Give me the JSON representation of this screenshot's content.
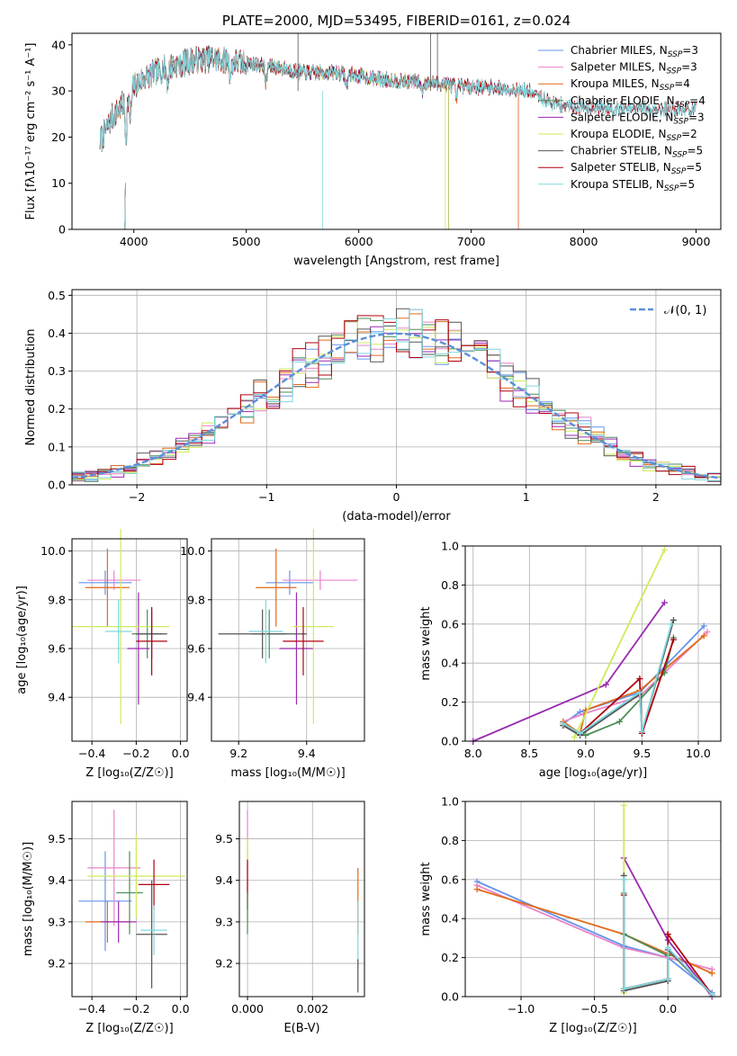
{
  "colors": {
    "chabrier_miles": "#6495ED",
    "salpeter_miles": "#E884C9",
    "kroupa_miles": "#E36A1A",
    "chabrier_elodie": "#4E8B57",
    "salpeter_elodie": "#9A2AB0",
    "kroupa_elodie": "#CDEB5A",
    "chabrier_stelib": "#555555",
    "salpeter_stelib": "#B00010",
    "kroupa_stelib": "#7FD8DF"
  },
  "chart_data": [
    {
      "id": "spectrum",
      "type": "line",
      "title": "PLATE=2000, MJD=53495, FIBERID=0161, z=0.024",
      "xlabel": "wavelength [Angstrom, rest frame]",
      "ylabel": "Flux [fλ10⁻¹⁷ erg cm⁻² s⁻¹ A⁻¹]",
      "xlim": [
        3450,
        9220
      ],
      "ylim": [
        0,
        42.5
      ],
      "xticks": [
        4000,
        5000,
        6000,
        7000,
        8000,
        9000
      ],
      "yticks": [
        0,
        10,
        20,
        30,
        40
      ],
      "grid": false,
      "legend_position": "top-right",
      "legend": [
        {
          "main": "Chabrier MILES, N",
          "sub": "SSP",
          "tail": "=3",
          "color_key": "chabrier_miles"
        },
        {
          "main": "Salpeter MILES, N",
          "sub": "SSP",
          "tail": "=3",
          "color_key": "salpeter_miles"
        },
        {
          "main": "Kroupa MILES, N",
          "sub": "SSP",
          "tail": "=4",
          "color_key": "kroupa_miles"
        },
        {
          "main": "Chabrier ELODIE, N",
          "sub": "SSP",
          "tail": "=4",
          "color_key": "chabrier_elodie"
        },
        {
          "main": "Salpeter ELODIE, N",
          "sub": "SSP",
          "tail": "=3",
          "color_key": "salpeter_elodie"
        },
        {
          "main": "Kroupa ELODIE, N",
          "sub": "SSP",
          "tail": "=2",
          "color_key": "kroupa_elodie"
        },
        {
          "main": "Chabrier STELIB, N",
          "sub": "SSP",
          "tail": "=5",
          "color_key": "chabrier_stelib"
        },
        {
          "main": "Salpeter STELIB, N",
          "sub": "SSP",
          "tail": "=5",
          "color_key": "salpeter_stelib"
        },
        {
          "main": "Kroupa STELIB, N",
          "sub": "SSP",
          "tail": "=5",
          "color_key": "kroupa_stelib"
        }
      ],
      "continuum": [
        [
          3700,
          19
        ],
        [
          3800,
          24
        ],
        [
          3900,
          27
        ],
        [
          4000,
          31
        ],
        [
          4100,
          33
        ],
        [
          4300,
          35
        ],
        [
          4500,
          36.5
        ],
        [
          4700,
          37
        ],
        [
          5000,
          36
        ],
        [
          5200,
          35.5
        ],
        [
          5500,
          34
        ],
        [
          5800,
          34
        ],
        [
          6200,
          32.5
        ],
        [
          6500,
          32
        ],
        [
          7000,
          31
        ],
        [
          7300,
          30.5
        ],
        [
          7500,
          30
        ],
        [
          7600,
          29
        ],
        [
          7700,
          27.5
        ],
        [
          7800,
          27
        ],
        [
          8000,
          26.5
        ],
        [
          8500,
          26
        ],
        [
          9000,
          26
        ]
      ],
      "features": [
        [
          3930,
          -8
        ],
        [
          3970,
          -6
        ],
        [
          4300,
          -3
        ],
        [
          4860,
          -3
        ],
        [
          5175,
          -4
        ],
        [
          5890,
          -3
        ],
        [
          6563,
          -2
        ],
        [
          6870,
          -3
        ]
      ],
      "series_ranges": [
        {
          "key": "chabrier_miles",
          "range": [
            3700,
            7420
          ]
        },
        {
          "key": "salpeter_miles",
          "range": [
            3700,
            7420
          ]
        },
        {
          "key": "kroupa_miles",
          "range": [
            3700,
            7420
          ]
        },
        {
          "key": "chabrier_elodie",
          "range": [
            3700,
            6800
          ]
        },
        {
          "key": "salpeter_elodie",
          "range": [
            3700,
            6800
          ]
        },
        {
          "key": "kroupa_elodie",
          "range": [
            3700,
            6800
          ]
        },
        {
          "key": "chabrier_stelib",
          "range": [
            3700,
            9000
          ]
        },
        {
          "key": "salpeter_stelib",
          "range": [
            3700,
            9000
          ]
        },
        {
          "key": "kroupa_stelib",
          "range": [
            3700,
            9000
          ]
        }
      ]
    },
    {
      "id": "residuals",
      "type": "step",
      "xlabel": "(data-model)/error",
      "ylabel": "Normed distribution",
      "xlim": [
        -2.5,
        2.5
      ],
      "ylim": [
        0,
        0.515
      ],
      "xticks": [
        -2,
        -1,
        0,
        1,
        2
      ],
      "xtick_labels": [
        "−2",
        "−1",
        "0",
        "1",
        "2"
      ],
      "yticks": [
        0.0,
        0.1,
        0.2,
        0.3,
        0.4,
        0.5
      ],
      "ytick_labels": [
        "0.0",
        "0.1",
        "0.2",
        "0.3",
        "0.4",
        "0.5"
      ],
      "grid": true,
      "legend_position": "top-right",
      "gaussian_label": "𝒩(0, 1)",
      "gaussian_color": "#5B8FD8",
      "bin_width": 0.1
    },
    {
      "id": "age_vs_Z",
      "type": "errorbar",
      "xlabel": "Z [log₁₀(Z/Z☉)]",
      "ylabel": "age  [log₁₀(age/yr)]",
      "xlim": [
        -0.49,
        0.03
      ],
      "ylim": [
        9.22,
        10.05
      ],
      "xticks": [
        -0.4,
        -0.2,
        0.0
      ],
      "xtick_labels": [
        "−0.4",
        "−0.2",
        "0.0"
      ],
      "yticks": [
        9.4,
        9.6,
        9.8,
        10.0
      ],
      "ytick_labels": [
        "9.4",
        "9.6",
        "9.8",
        "10.0"
      ],
      "grid": true,
      "points": [
        {
          "key": "chabrier_miles",
          "x": -0.34,
          "xerr": 0.12,
          "y": 9.87,
          "yerr": 0.05
        },
        {
          "key": "salpeter_miles",
          "x": -0.3,
          "xerr": 0.12,
          "y": 9.88,
          "yerr": 0.04
        },
        {
          "key": "kroupa_miles",
          "x": -0.33,
          "xerr": 0.1,
          "y": 9.85,
          "yerr": 0.16
        },
        {
          "key": "chabrier_elodie",
          "x": -0.15,
          "xerr": 0.07,
          "y": 9.66,
          "yerr": 0.1
        },
        {
          "key": "salpeter_elodie",
          "x": -0.19,
          "xerr": 0.05,
          "y": 9.6,
          "yerr": 0.23
        },
        {
          "key": "kroupa_elodie",
          "x": -0.27,
          "xerr": 0.22,
          "y": 9.69,
          "yerr": 0.4
        },
        {
          "key": "chabrier_stelib",
          "x": -0.13,
          "xerr": 0.07,
          "y": 9.66,
          "yerr": 0.1
        },
        {
          "key": "salpeter_stelib",
          "x": -0.13,
          "xerr": 0.07,
          "y": 9.63,
          "yerr": 0.14
        },
        {
          "key": "kroupa_stelib",
          "x": -0.28,
          "xerr": 0.06,
          "y": 9.67,
          "yerr": 0.13
        }
      ]
    },
    {
      "id": "age_vs_mass",
      "type": "errorbar",
      "xlabel": "mass [log₁₀(M/M☉)]",
      "xlim": [
        9.12,
        9.57
      ],
      "ylim": [
        9.22,
        10.05
      ],
      "xticks": [
        9.2,
        9.4
      ],
      "xtick_labels": [
        "9.2",
        "9.4"
      ],
      "yticks": [
        9.4,
        9.6,
        9.8,
        10.0
      ],
      "ytick_labels": [
        "9.4",
        "9.6",
        "9.8",
        "10.0"
      ],
      "grid": true,
      "points": [
        {
          "key": "chabrier_miles",
          "x": 9.35,
          "xerr": 0.07,
          "y": 9.87,
          "yerr": 0.05
        },
        {
          "key": "salpeter_miles",
          "x": 9.44,
          "xerr": 0.11,
          "y": 9.88,
          "yerr": 0.04
        },
        {
          "key": "kroupa_miles",
          "x": 9.31,
          "xerr": 0.06,
          "y": 9.85,
          "yerr": 0.16
        },
        {
          "key": "chabrier_elodie",
          "x": 9.29,
          "xerr": 0.05,
          "y": 9.66,
          "yerr": 0.1
        },
        {
          "key": "salpeter_elodie",
          "x": 9.37,
          "xerr": 0.05,
          "y": 9.6,
          "yerr": 0.23
        },
        {
          "key": "kroupa_elodie",
          "x": 9.42,
          "xerr": 0.06,
          "y": 9.69,
          "yerr": 0.4
        },
        {
          "key": "chabrier_stelib",
          "x": 9.27,
          "xerr": 0.13,
          "y": 9.66,
          "yerr": 0.1
        },
        {
          "key": "salpeter_stelib",
          "x": 9.39,
          "xerr": 0.06,
          "y": 9.63,
          "yerr": 0.14
        },
        {
          "key": "kroupa_stelib",
          "x": 9.28,
          "xerr": 0.05,
          "y": 9.67,
          "yerr": 0.13
        }
      ]
    },
    {
      "id": "massweight_vs_age",
      "type": "line",
      "xlabel": "age  [log₁₀(age/yr)]",
      "ylabel": "mass weight",
      "xlim": [
        7.93,
        10.2
      ],
      "ylim": [
        0,
        1.0
      ],
      "xticks": [
        8.0,
        8.5,
        9.0,
        9.5,
        10.0
      ],
      "xtick_labels": [
        "8.0",
        "8.5",
        "9.0",
        "9.5",
        "10.0"
      ],
      "yticks": [
        0.0,
        0.2,
        0.4,
        0.6,
        0.8,
        1.0
      ],
      "ytick_labels": [
        "0.0",
        "0.2",
        "0.4",
        "0.6",
        "0.8",
        "1.0"
      ],
      "grid": true,
      "series": [
        {
          "key": "chabrier_miles",
          "x": [
            8.8,
            8.95,
            9.48,
            10.05
          ],
          "y": [
            0.09,
            0.15,
            0.25,
            0.59
          ]
        },
        {
          "key": "salpeter_miles",
          "x": [
            8.8,
            8.98,
            9.48,
            10.08
          ],
          "y": [
            0.1,
            0.14,
            0.23,
            0.56
          ]
        },
        {
          "key": "kroupa_miles",
          "x": [
            8.8,
            8.95,
            9.0,
            9.48,
            10.05
          ],
          "y": [
            0.1,
            0.04,
            0.16,
            0.26,
            0.54
          ]
        },
        {
          "key": "chabrier_elodie",
          "x": [
            8.8,
            9.0,
            9.3,
            9.7,
            9.78
          ],
          "y": [
            0.08,
            0.03,
            0.1,
            0.35,
            0.53
          ]
        },
        {
          "key": "salpeter_elodie",
          "x": [
            8.0,
            9.18,
            9.7
          ],
          "y": [
            0.0,
            0.29,
            0.71
          ]
        },
        {
          "key": "kroupa_elodie",
          "x": [
            8.9,
            9.7
          ],
          "y": [
            0.02,
            0.98
          ]
        },
        {
          "key": "chabrier_stelib",
          "x": [
            8.8,
            8.95,
            9.48,
            9.5,
            9.78
          ],
          "y": [
            0.08,
            0.03,
            0.24,
            0.05,
            0.62
          ]
        },
        {
          "key": "salpeter_stelib",
          "x": [
            8.8,
            8.95,
            9.48,
            9.5,
            9.78
          ],
          "y": [
            0.09,
            0.04,
            0.32,
            0.04,
            0.52
          ]
        },
        {
          "key": "kroupa_stelib",
          "x": [
            8.8,
            8.95,
            9.48,
            9.5,
            9.76
          ],
          "y": [
            0.09,
            0.04,
            0.25,
            0.05,
            0.6
          ]
        }
      ]
    },
    {
      "id": "mass_vs_Z",
      "type": "errorbar",
      "xlabel": "Z [log₁₀(Z/Z☉)]",
      "ylabel": "mass [log₁₀(M/M☉)]",
      "xlim": [
        -0.49,
        0.03
      ],
      "ylim": [
        9.12,
        9.59
      ],
      "xticks": [
        -0.4,
        -0.2,
        0.0
      ],
      "xtick_labels": [
        "−0.4",
        "−0.2",
        "0.0"
      ],
      "yticks": [
        9.2,
        9.3,
        9.4,
        9.5
      ],
      "ytick_labels": [
        "9.2",
        "9.3",
        "9.4",
        "9.5"
      ],
      "grid": true,
      "points": [
        {
          "key": "chabrier_miles",
          "x": -0.34,
          "xerr": 0.12,
          "y": 9.35,
          "yerr": 0.12
        },
        {
          "key": "salpeter_miles",
          "x": -0.3,
          "xerr": 0.12,
          "y": 9.43,
          "yerr": 0.14
        },
        {
          "key": "kroupa_miles",
          "x": -0.33,
          "xerr": 0.1,
          "y": 9.3,
          "yerr": 0.05
        },
        {
          "key": "chabrier_elodie",
          "x": -0.23,
          "xerr": 0.06,
          "y": 9.37,
          "yerr": 0.1
        },
        {
          "key": "salpeter_elodie",
          "x": -0.28,
          "xerr": 0.08,
          "y": 9.3,
          "yerr": 0.05
        },
        {
          "key": "kroupa_elodie",
          "x": -0.2,
          "xerr": 0.22,
          "y": 9.41,
          "yerr": 0.1
        },
        {
          "key": "chabrier_stelib",
          "x": -0.13,
          "xerr": 0.07,
          "y": 9.27,
          "yerr": 0.13
        },
        {
          "key": "salpeter_stelib",
          "x": -0.12,
          "xerr": 0.07,
          "y": 9.39,
          "yerr": 0.06
        },
        {
          "key": "kroupa_stelib",
          "x": -0.12,
          "xerr": 0.06,
          "y": 9.28,
          "yerr": 0.06
        }
      ]
    },
    {
      "id": "mass_vs_ebv",
      "type": "errorbar",
      "xlabel": "E(B-V)",
      "xlim": [
        -0.00025,
        0.0036
      ],
      "ylim": [
        9.12,
        9.59
      ],
      "xticks": [
        0.0,
        0.002
      ],
      "xtick_labels": [
        "0.000",
        "0.002"
      ],
      "yticks": [
        9.2,
        9.3,
        9.4,
        9.5
      ],
      "ytick_labels": [
        "9.2",
        "9.3",
        "9.4",
        "9.5"
      ],
      "grid": true,
      "points": [
        {
          "key": "salpeter_miles",
          "x": 0.0,
          "xerr": 0,
          "y": 9.45,
          "yerr": 0.12
        },
        {
          "key": "kroupa_elodie",
          "x": 0.0,
          "xerr": 0,
          "y": 9.4,
          "yerr": 0.1
        },
        {
          "key": "salpeter_stelib",
          "x": 0.0,
          "xerr": 0,
          "y": 9.39,
          "yerr": 0.06
        },
        {
          "key": "chabrier_elodie",
          "x": 0.0,
          "xerr": 0,
          "y": 9.32,
          "yerr": 0.05
        },
        {
          "key": "kroupa_miles",
          "x": 0.0034,
          "xerr": 0,
          "y": 9.35,
          "yerr": 0.08
        },
        {
          "key": "kroupa_stelib",
          "x": 0.0034,
          "xerr": 0,
          "y": 9.27,
          "yerr": 0.08
        },
        {
          "key": "chabrier_stelib",
          "x": 0.0034,
          "xerr": 0,
          "y": 9.17,
          "yerr": 0.04
        }
      ]
    },
    {
      "id": "massweight_vs_Z",
      "type": "line",
      "xlabel": "Z [log₁₀(Z/Z☉)]",
      "ylabel": "mass weight",
      "xlim": [
        -1.38,
        0.36
      ],
      "ylim": [
        0,
        1.0
      ],
      "xticks": [
        -1.0,
        -0.5,
        0.0
      ],
      "xtick_labels": [
        "−1.0",
        "−0.5",
        "0.0"
      ],
      "yticks": [
        0.0,
        0.2,
        0.4,
        0.6,
        0.8,
        1.0
      ],
      "ytick_labels": [
        "0.0",
        "0.2",
        "0.4",
        "0.6",
        "0.8",
        "1.0"
      ],
      "grid": true,
      "series": [
        {
          "key": "chabrier_miles",
          "x": [
            -1.3,
            -0.3,
            0.0,
            0.3
          ],
          "y": [
            0.59,
            0.26,
            0.2,
            0.02
          ]
        },
        {
          "key": "salpeter_miles",
          "x": [
            -1.3,
            -0.3,
            0.0,
            0.3
          ],
          "y": [
            0.57,
            0.25,
            0.2,
            0.14
          ]
        },
        {
          "key": "kroupa_miles",
          "x": [
            -1.3,
            -0.3,
            0.0,
            0.3
          ],
          "y": [
            0.55,
            0.32,
            0.22,
            0.12
          ]
        },
        {
          "key": "chabrier_elodie",
          "x": [
            -0.3,
            -0.3,
            0.0,
            0.0,
            -0.3
          ],
          "y": [
            0.53,
            0.04,
            0.09,
            0.21,
            0.32
          ]
        },
        {
          "key": "salpeter_elodie",
          "x": [
            -0.3,
            0.0,
            0.3
          ],
          "y": [
            0.71,
            0.29,
            0.0
          ]
        },
        {
          "key": "kroupa_elodie",
          "x": [
            -0.3,
            -0.3
          ],
          "y": [
            0.02,
            0.98
          ]
        },
        {
          "key": "chabrier_stelib",
          "x": [
            -0.3,
            -0.3,
            0.0,
            0.0,
            0.3
          ],
          "y": [
            0.62,
            0.03,
            0.08,
            0.24,
            0.01
          ]
        },
        {
          "key": "salpeter_stelib",
          "x": [
            -0.3,
            -0.3,
            0.0,
            0.0,
            0.3
          ],
          "y": [
            0.52,
            0.04,
            0.09,
            0.32,
            0.01
          ]
        },
        {
          "key": "kroupa_stelib",
          "x": [
            -0.3,
            -0.3,
            0.0,
            0.0,
            0.3
          ],
          "y": [
            0.6,
            0.04,
            0.09,
            0.25,
            0.01
          ]
        }
      ]
    }
  ]
}
